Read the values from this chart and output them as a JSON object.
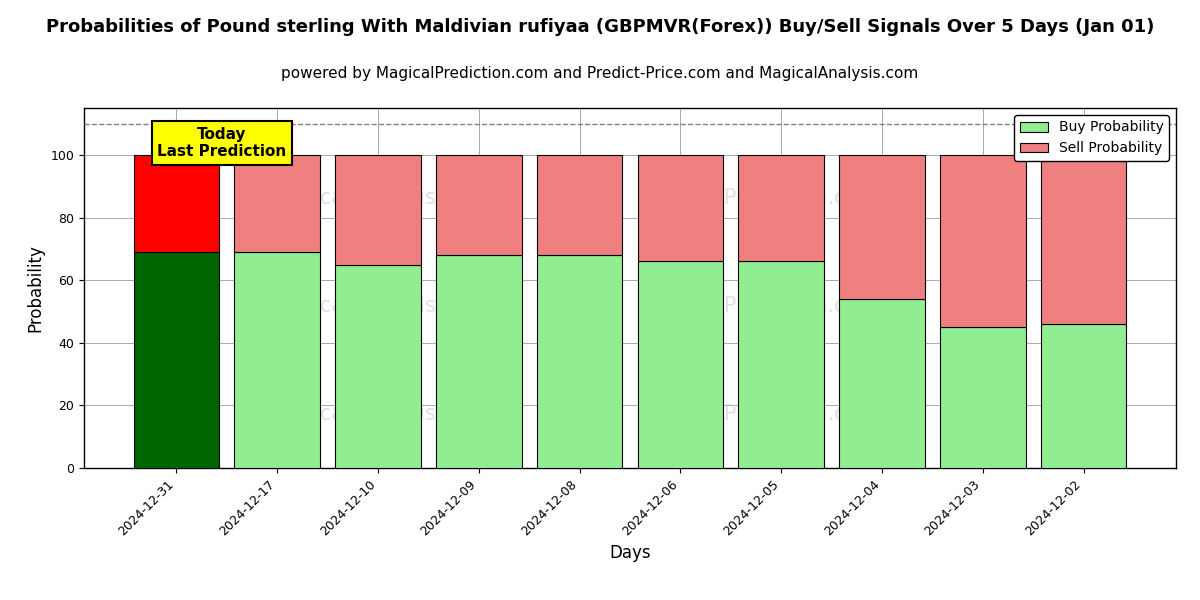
{
  "title": "Probabilities of Pound sterling With Maldivian rufiyaa (GBPMVR(Forex)) Buy/Sell Signals Over 5 Days (Jan 01)",
  "subtitle": "powered by MagicalPrediction.com and Predict-Price.com and MagicalAnalysis.com",
  "xlabel": "Days",
  "ylabel": "Probability",
  "categories": [
    "2024-12-31",
    "2024-12-17",
    "2024-12-10",
    "2024-12-09",
    "2024-12-08",
    "2024-12-06",
    "2024-12-05",
    "2024-12-04",
    "2024-12-03",
    "2024-12-02"
  ],
  "buy_values": [
    69,
    69,
    65,
    68,
    68,
    66,
    66,
    54,
    45,
    46
  ],
  "sell_values": [
    31,
    31,
    35,
    32,
    32,
    34,
    34,
    46,
    55,
    54
  ],
  "first_bar_buy_color": "#006400",
  "first_bar_sell_color": "#ff0000",
  "other_bar_buy_color": "#90EE90",
  "other_bar_sell_color": "#F08080",
  "bar_edge_color": "#000000",
  "legend_buy_color": "#90EE90",
  "legend_sell_color": "#F08080",
  "today_box_color": "#ffff00",
  "today_text": "Today\nLast Prediction",
  "dashed_line_y": 110,
  "ylim": [
    0,
    115
  ],
  "yticks": [
    0,
    20,
    40,
    60,
    80,
    100
  ],
  "grid_color": "#aaaaaa",
  "title_fontsize": 13,
  "subtitle_fontsize": 11,
  "axis_label_fontsize": 12,
  "tick_fontsize": 9,
  "bar_width": 0.85,
  "figsize": [
    12,
    6
  ],
  "dpi": 100
}
